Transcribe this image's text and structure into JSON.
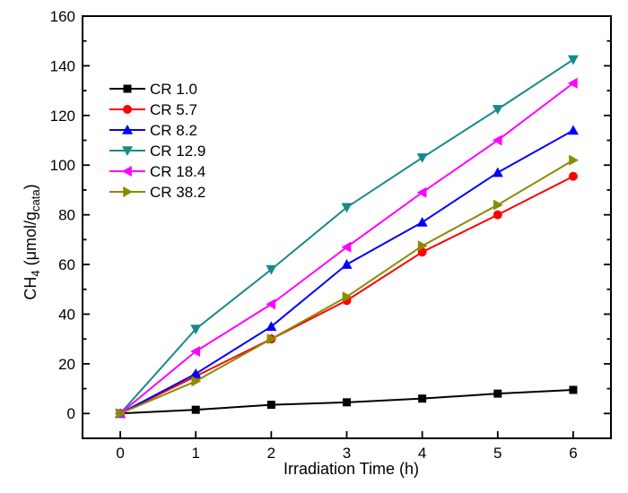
{
  "chart_data": {
    "type": "line",
    "title": "",
    "xlabel": "Irradiation Time (h)",
    "ylabel": "CH4 (μmol/gcata)",
    "ylabel_parts": [
      {
        "text": "CH",
        "sub": false
      },
      {
        "text": "4",
        "sub": true
      },
      {
        "text": " (μmol/g",
        "sub": false
      },
      {
        "text": "cata",
        "sub": true
      },
      {
        "text": ")",
        "sub": false
      }
    ],
    "x": [
      0,
      1,
      2,
      3,
      4,
      5,
      6
    ],
    "series": [
      {
        "name": "CR 1.0",
        "color": "#000000",
        "marker": "square",
        "values": [
          0,
          1.5,
          3.5,
          4.5,
          6,
          8,
          9.5
        ]
      },
      {
        "name": "CR 5.7",
        "color": "#ff0000",
        "marker": "circle",
        "values": [
          0,
          15,
          30,
          45.5,
          65,
          80,
          95.5
        ]
      },
      {
        "name": "CR 8.2",
        "color": "#0000ff",
        "marker": "triangle-up",
        "values": [
          0,
          16,
          35,
          60,
          77,
          97,
          114
        ]
      },
      {
        "name": "CR 12.9",
        "color": "#178a8a",
        "marker": "triangle-down",
        "values": [
          0,
          34,
          58,
          83,
          103,
          122.5,
          142.5
        ]
      },
      {
        "name": "CR 18.4",
        "color": "#ff00ff",
        "marker": "triangle-left",
        "values": [
          0,
          25,
          44,
          67,
          89,
          110,
          133
        ]
      },
      {
        "name": "CR 38.2",
        "color": "#8b8b00",
        "marker": "triangle-right",
        "values": [
          0,
          13,
          30,
          47,
          67.5,
          84,
          102
        ]
      }
    ],
    "xlim": [
      -0.5,
      6.5
    ],
    "ylim": [
      -10,
      160
    ],
    "xticks": [
      0,
      1,
      2,
      3,
      4,
      5,
      6
    ],
    "yticks": [
      0,
      20,
      40,
      60,
      80,
      100,
      120,
      140,
      160
    ],
    "y_minor_step": 10,
    "grid": false,
    "legend_position": "upper-left-inside",
    "axis_color": "#000000",
    "background_color": "#ffffff"
  }
}
